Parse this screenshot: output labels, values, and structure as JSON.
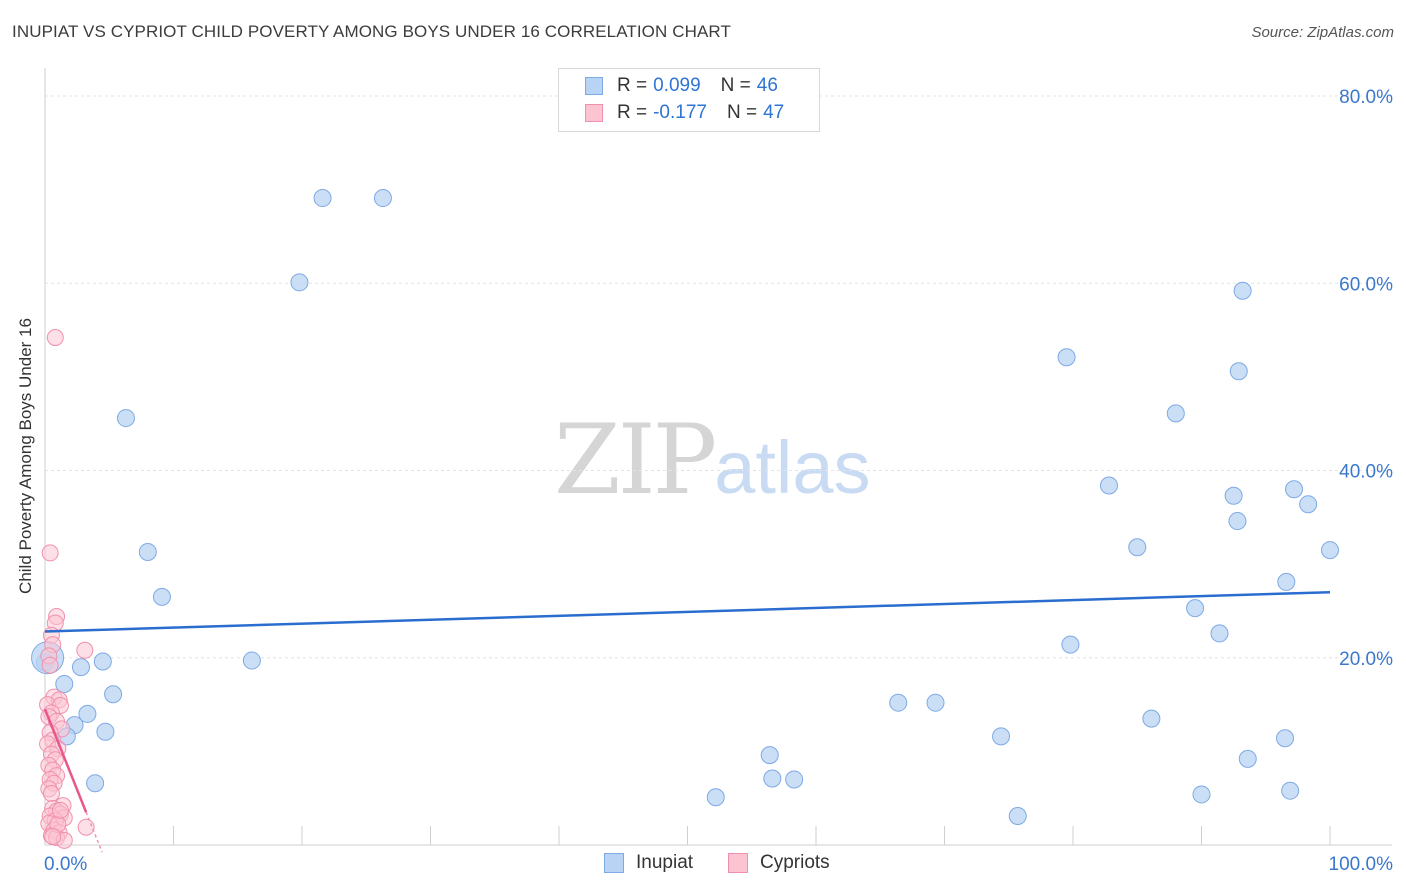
{
  "title": "INUPIAT VS CYPRIOT CHILD POVERTY AMONG BOYS UNDER 16 CORRELATION CHART",
  "source": "Source: ZipAtlas.com",
  "watermark": {
    "zip": "ZIP",
    "atlas": "atlas"
  },
  "legend": {
    "r_label": "R =",
    "n_label": "N =",
    "series": [
      {
        "name": "Inupiat",
        "r": "0.099",
        "n": "46",
        "fill": "#b8d3f3",
        "stroke": "#7eaae4"
      },
      {
        "name": "Cypriots",
        "r": "-0.177",
        "n": "47",
        "fill": "#fcc4d3",
        "stroke": "#f090ac"
      }
    ]
  },
  "colors": {
    "inupiat_fill": "#b8d3f3",
    "inupiat_stroke": "#7eaae4",
    "inupiat_line": "#2a6dce",
    "cypriot_fill": "#fcc4d3",
    "cypriot_stroke": "#f090ac",
    "cypriot_line": "#e8578a",
    "grid": "#e4e4e4",
    "axis_text": "#3a78cc"
  },
  "chart_data": {
    "type": "scatter",
    "title": "INUPIAT VS CYPRIOT CHILD POVERTY AMONG BOYS UNDER 16 CORRELATION CHART",
    "xlabel": "",
    "ylabel": "Child Poverty Among Boys Under 16",
    "xlim": [
      0,
      100
    ],
    "ylim": [
      0,
      80
    ],
    "x_tick_labels": [
      "0.0%",
      "100.0%"
    ],
    "y_tick_labels": [
      "20.0%",
      "40.0%",
      "60.0%",
      "80.0%"
    ],
    "y_ticks": [
      20,
      40,
      60,
      80
    ],
    "series": [
      {
        "name": "Inupiat",
        "points": [
          [
            21.6,
            69.1
          ],
          [
            26.3,
            69.1
          ],
          [
            19.8,
            60.1
          ],
          [
            93.2,
            59.2
          ],
          [
            79.5,
            52.1
          ],
          [
            92.9,
            50.6
          ],
          [
            88.0,
            46.1
          ],
          [
            6.3,
            45.6
          ],
          [
            82.8,
            38.4
          ],
          [
            92.5,
            37.3
          ],
          [
            97.2,
            38.0
          ],
          [
            98.3,
            36.4
          ],
          [
            92.8,
            34.6
          ],
          [
            8.0,
            31.3
          ],
          [
            85.0,
            31.8
          ],
          [
            100.0,
            31.5
          ],
          [
            96.6,
            28.1
          ],
          [
            9.1,
            26.5
          ],
          [
            89.5,
            25.3
          ],
          [
            91.4,
            22.6
          ],
          [
            79.8,
            21.4
          ],
          [
            16.1,
            19.7
          ],
          [
            0.0,
            19.5
          ],
          [
            4.5,
            19.6
          ],
          [
            2.8,
            19.0
          ],
          [
            1.5,
            17.2
          ],
          [
            5.3,
            16.1
          ],
          [
            66.4,
            15.2
          ],
          [
            69.3,
            15.2
          ],
          [
            3.3,
            14.0
          ],
          [
            2.3,
            12.8
          ],
          [
            86.1,
            13.5
          ],
          [
            4.7,
            12.1
          ],
          [
            1.7,
            11.6
          ],
          [
            74.4,
            11.6
          ],
          [
            96.5,
            11.4
          ],
          [
            56.4,
            9.6
          ],
          [
            93.6,
            9.2
          ],
          [
            56.6,
            7.1
          ],
          [
            58.3,
            7.0
          ],
          [
            3.9,
            6.6
          ],
          [
            96.9,
            5.8
          ],
          [
            90.0,
            5.4
          ],
          [
            52.2,
            5.1
          ],
          [
            75.7,
            3.1
          ],
          [
            0.2,
            20.0
          ]
        ],
        "trend": {
          "x": [
            0,
            100
          ],
          "y": [
            22.8,
            27.0
          ]
        }
      },
      {
        "name": "Cypriots",
        "points": [
          [
            0.8,
            54.2
          ],
          [
            0.4,
            31.2
          ],
          [
            0.9,
            24.4
          ],
          [
            0.8,
            23.7
          ],
          [
            0.5,
            22.4
          ],
          [
            0.6,
            21.4
          ],
          [
            3.1,
            20.8
          ],
          [
            0.3,
            20.2
          ],
          [
            0.4,
            19.2
          ],
          [
            0.7,
            15.8
          ],
          [
            1.1,
            15.5
          ],
          [
            0.2,
            15.0
          ],
          [
            1.2,
            14.9
          ],
          [
            0.5,
            14.1
          ],
          [
            0.3,
            13.7
          ],
          [
            0.9,
            13.2
          ],
          [
            1.3,
            12.4
          ],
          [
            0.4,
            12.0
          ],
          [
            0.6,
            11.2
          ],
          [
            0.2,
            10.8
          ],
          [
            1.0,
            10.3
          ],
          [
            0.5,
            9.7
          ],
          [
            0.8,
            9.1
          ],
          [
            0.3,
            8.5
          ],
          [
            0.6,
            8.0
          ],
          [
            0.9,
            7.4
          ],
          [
            0.4,
            7.0
          ],
          [
            0.7,
            6.6
          ],
          [
            0.3,
            6.0
          ],
          [
            0.5,
            5.5
          ],
          [
            1.4,
            4.2
          ],
          [
            0.6,
            3.9
          ],
          [
            0.9,
            3.6
          ],
          [
            1.2,
            3.3
          ],
          [
            0.4,
            3.1
          ],
          [
            1.5,
            2.9
          ],
          [
            0.8,
            2.6
          ],
          [
            0.3,
            2.3
          ],
          [
            3.2,
            1.9
          ],
          [
            0.7,
            1.6
          ],
          [
            1.1,
            1.3
          ],
          [
            0.5,
            1.0
          ],
          [
            0.9,
            0.8
          ],
          [
            1.0,
            2.2
          ],
          [
            1.5,
            0.5
          ],
          [
            0.6,
            0.9
          ],
          [
            1.2,
            3.7
          ]
        ],
        "trend": {
          "x": [
            0,
            3.2
          ],
          "y": [
            14.5,
            3.5
          ]
        }
      }
    ]
  }
}
